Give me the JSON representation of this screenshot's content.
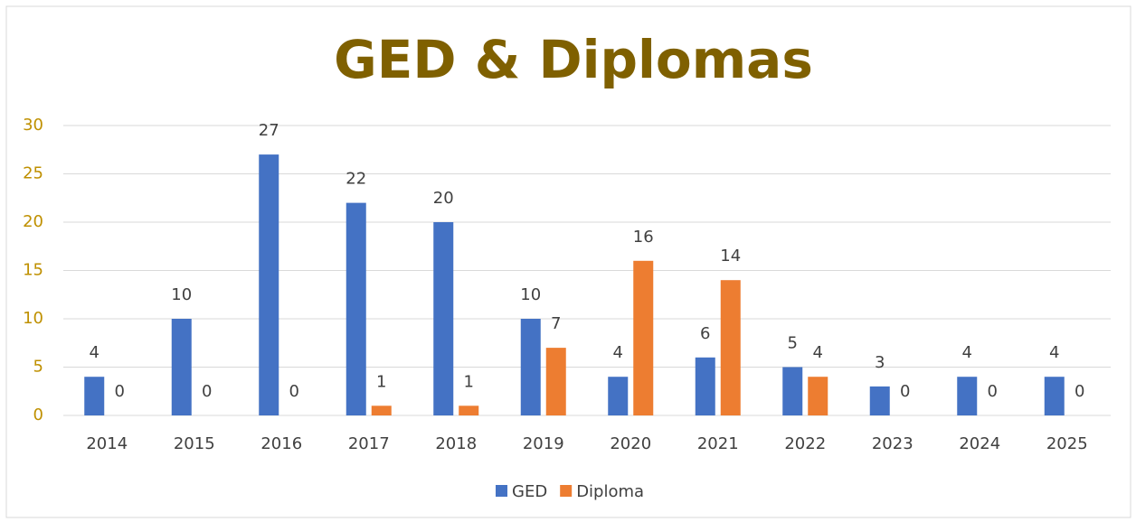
{
  "chart_data": {
    "type": "bar",
    "title": "GED & Diplomas",
    "categories": [
      "2014",
      "2015",
      "2016",
      "2017",
      "2018",
      "2019",
      "2020",
      "2021",
      "2022",
      "2023",
      "2024",
      "2025"
    ],
    "series": [
      {
        "name": "GED",
        "color": "#4472c4",
        "values": [
          4,
          10,
          27,
          22,
          20,
          10,
          4,
          6,
          5,
          3,
          4,
          4
        ]
      },
      {
        "name": "Diploma",
        "color": "#ed7d31",
        "values": [
          0,
          0,
          0,
          1,
          1,
          7,
          16,
          14,
          4,
          0,
          0,
          0
        ]
      }
    ],
    "ylim": [
      0,
      30
    ],
    "yticks": [
      0,
      5,
      10,
      15,
      20,
      25,
      30
    ],
    "grid": true,
    "legend": "bottom"
  }
}
